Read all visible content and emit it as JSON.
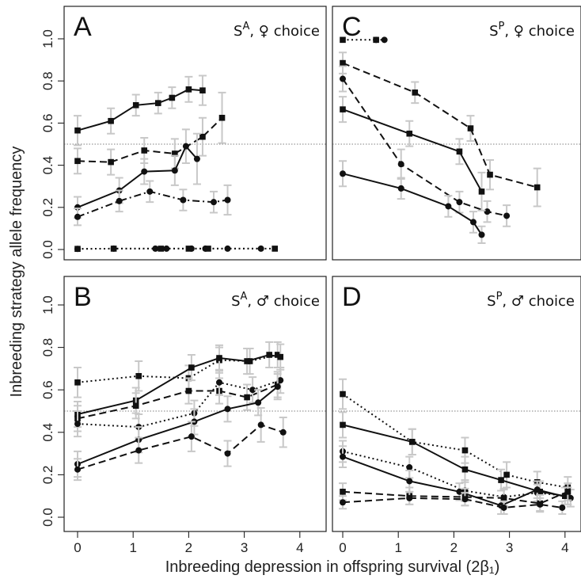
{
  "chart_data": {
    "type": "line",
    "xlabel": "Inbreeding depression in offspring survival (2β₁)",
    "ylabel": "Inbreeding strategy allele frequency",
    "xlim": [
      -0.1,
      4.25
    ],
    "ylim": [
      -0.05,
      1.12
    ],
    "xticks": [
      0,
      1,
      2,
      3,
      4
    ],
    "yticks": [
      0.0,
      0.2,
      0.4,
      0.6,
      0.8,
      1.0
    ],
    "reference_line_y": 0.5,
    "panels": [
      {
        "letter": "A",
        "strategy": "S",
        "sup": "A",
        "choice_sym": "♀",
        "choice": "choice",
        "series": [
          {
            "marker": "square",
            "dash": "solid",
            "x": [
              0,
              0.6,
              1.05,
              1.45,
              1.7,
              2.0,
              2.25
            ],
            "y": [
              0.565,
              0.61,
              0.685,
              0.695,
              0.72,
              0.76,
              0.755
            ],
            "err": [
              0.07,
              0.06,
              0.05,
              0.05,
              0.05,
              0.06,
              0.07
            ]
          },
          {
            "marker": "square",
            "dash": "dashed",
            "x": [
              0,
              0.6,
              1.2,
              1.75,
              2.25,
              2.6
            ],
            "y": [
              0.42,
              0.415,
              0.47,
              0.455,
              0.535,
              0.625
            ],
            "err": [
              0.06,
              0.06,
              0.06,
              0.07,
              0.09,
              0.12
            ]
          },
          {
            "marker": "circle",
            "dash": "solid",
            "x": [
              0,
              0.75,
              1.2,
              1.75,
              1.95,
              2.15
            ],
            "y": [
              0.2,
              0.28,
              0.37,
              0.375,
              0.49,
              0.43
            ],
            "err": [
              0.05,
              0.06,
              0.06,
              0.07,
              0.08,
              0.12
            ]
          },
          {
            "marker": "circle",
            "dash": "dashdot",
            "x": [
              0,
              0.75,
              1.3,
              1.9,
              2.45,
              2.7
            ],
            "y": [
              0.155,
              0.23,
              0.275,
              0.235,
              0.225,
              0.235
            ],
            "err": [
              0.04,
              0.05,
              0.05,
              0.05,
              0.05,
              0.07
            ]
          },
          {
            "marker": "circle",
            "dash": "dotted",
            "x": [
              0,
              0.65,
              1.4,
              1.6,
              2.05,
              2.3,
              2.7,
              3.3
            ],
            "y": [
              0.003,
              0.004,
              0.004,
              0.004,
              0.004,
              0.004,
              0.004,
              0.004
            ],
            "err": [
              0,
              0,
              0,
              0,
              0,
              0,
              0,
              0
            ]
          },
          {
            "marker": "square",
            "dash": "dotted",
            "x": [
              0,
              0.65,
              1.5,
              2.0,
              2.35,
              3.55
            ],
            "y": [
              0.003,
              0.004,
              0.004,
              0.004,
              0.004,
              0.004
            ],
            "err": [
              0,
              0,
              0,
              0,
              0,
              0
            ]
          }
        ]
      },
      {
        "letter": "C",
        "strategy": "S",
        "sup": "P",
        "choice_sym": "♀",
        "choice": "choice",
        "series": [
          {
            "marker": "square",
            "dash": "dotted",
            "x": [
              0,
              0.6
            ],
            "y": [
              0.995,
              0.995
            ],
            "err": [
              0,
              0
            ]
          },
          {
            "marker": "circle",
            "dash": "dotted",
            "x": [
              0.6,
              0.75
            ],
            "y": [
              0.995,
              0.995
            ],
            "err": [
              0,
              0
            ]
          },
          {
            "marker": "square",
            "dash": "dashed",
            "x": [
              0,
              1.3,
              2.3,
              2.65,
              3.5
            ],
            "y": [
              0.885,
              0.745,
              0.575,
              0.355,
              0.295
            ],
            "err": [
              0.05,
              0.05,
              0.06,
              0.07,
              0.09
            ]
          },
          {
            "marker": "circle",
            "dash": "dashed",
            "x": [
              0,
              1.05,
              2.1,
              2.6,
              2.95
            ],
            "y": [
              0.81,
              0.405,
              0.225,
              0.18,
              0.16
            ],
            "err": [
              0.06,
              0.07,
              0.05,
              0.05,
              0.05
            ]
          },
          {
            "marker": "square",
            "dash": "solid",
            "x": [
              0,
              1.2,
              2.1,
              2.5
            ],
            "y": [
              0.665,
              0.55,
              0.465,
              0.275
            ],
            "err": [
              0.06,
              0.06,
              0.06,
              0.09
            ]
          },
          {
            "marker": "circle",
            "dash": "solid",
            "x": [
              0,
              1.05,
              1.9,
              2.35,
              2.5
            ],
            "y": [
              0.36,
              0.29,
              0.205,
              0.13,
              0.07
            ],
            "err": [
              0.06,
              0.05,
              0.05,
              0.05,
              0.04
            ]
          }
        ]
      },
      {
        "letter": "B",
        "strategy": "S",
        "sup": "A",
        "choice_sym": "♂",
        "choice": "choice",
        "series": [
          {
            "marker": "square",
            "dash": "dotted",
            "x": [
              0,
              1.1,
              2.0,
              2.55,
              3.1,
              3.6
            ],
            "y": [
              0.635,
              0.665,
              0.655,
              0.74,
              0.735,
              0.765
            ],
            "err": [
              0.07,
              0.07,
              0.06,
              0.06,
              0.06,
              0.06
            ]
          },
          {
            "marker": "square",
            "dash": "solid",
            "x": [
              0,
              1.05,
              2.05,
              2.55,
              3.05,
              3.45,
              3.65
            ],
            "y": [
              0.485,
              0.55,
              0.705,
              0.75,
              0.735,
              0.765,
              0.755
            ],
            "err": [
              0.06,
              0.06,
              0.06,
              0.06,
              0.06,
              0.06,
              0.06
            ]
          },
          {
            "marker": "square",
            "dash": "dashed",
            "x": [
              0,
              1.05,
              2.0,
              2.55,
              3.05,
              3.6
            ],
            "y": [
              0.465,
              0.525,
              0.595,
              0.595,
              0.565,
              0.625
            ],
            "err": [
              0.06,
              0.06,
              0.06,
              0.06,
              0.06,
              0.06
            ]
          },
          {
            "marker": "circle",
            "dash": "dotted",
            "x": [
              0,
              1.1,
              2.1,
              2.55,
              3.15,
              3.65
            ],
            "y": [
              0.44,
              0.425,
              0.49,
              0.635,
              0.6,
              0.645
            ],
            "err": [
              0.06,
              0.06,
              0.06,
              0.06,
              0.06,
              0.06
            ]
          },
          {
            "marker": "circle",
            "dash": "solid",
            "x": [
              0,
              1.1,
              2.1,
              2.7,
              3.25,
              3.6
            ],
            "y": [
              0.25,
              0.365,
              0.45,
              0.51,
              0.54,
              0.615
            ],
            "err": [
              0.06,
              0.06,
              0.06,
              0.06,
              0.06,
              0.06
            ]
          },
          {
            "marker": "circle",
            "dash": "dashed",
            "x": [
              0,
              1.1,
              2.05,
              2.7,
              3.3,
              3.7
            ],
            "y": [
              0.225,
              0.315,
              0.38,
              0.3,
              0.435,
              0.4
            ],
            "err": [
              0.05,
              0.06,
              0.07,
              0.06,
              0.08,
              0.07
            ]
          }
        ]
      },
      {
        "letter": "D",
        "strategy": "S",
        "sup": "P",
        "choice_sym": "♂",
        "choice": "choice",
        "series": [
          {
            "marker": "square",
            "dash": "dotted",
            "x": [
              0,
              1.25,
              2.2,
              2.95,
              3.5,
              4.05
            ],
            "y": [
              0.58,
              0.355,
              0.315,
              0.2,
              0.165,
              0.14
            ],
            "err": [
              0.07,
              0.06,
              0.06,
              0.06,
              0.05,
              0.05
            ]
          },
          {
            "marker": "square",
            "dash": "solid",
            "x": [
              0,
              1.25,
              2.2,
              2.85,
              3.55,
              4.0
            ],
            "y": [
              0.435,
              0.355,
              0.225,
              0.175,
              0.12,
              0.1
            ],
            "err": [
              0.06,
              0.06,
              0.06,
              0.05,
              0.05,
              0.04
            ]
          },
          {
            "marker": "circle",
            "dash": "dotted",
            "x": [
              0,
              1.2,
              2.2,
              2.9,
              3.5,
              4.05
            ],
            "y": [
              0.31,
              0.235,
              0.125,
              0.095,
              0.115,
              0.1
            ],
            "err": [
              0.05,
              0.05,
              0.05,
              0.04,
              0.04,
              0.04
            ]
          },
          {
            "marker": "circle",
            "dash": "solid",
            "x": [
              0,
              1.2,
              2.1,
              2.85,
              3.5,
              4.1
            ],
            "y": [
              0.285,
              0.17,
              0.12,
              0.055,
              0.13,
              0.09
            ],
            "err": [
              0.05,
              0.05,
              0.04,
              0.04,
              0.04,
              0.04
            ]
          },
          {
            "marker": "square",
            "dash": "dashed",
            "x": [
              0,
              1.2,
              2.2,
              2.9,
              3.55,
              4.05
            ],
            "y": [
              0.12,
              0.1,
              0.095,
              0.09,
              0.065,
              0.12
            ],
            "err": [
              0.04,
              0.04,
              0.04,
              0.04,
              0.04,
              0.04
            ]
          },
          {
            "marker": "circle",
            "dash": "dashed",
            "x": [
              0,
              1.2,
              2.2,
              2.9,
              3.55,
              3.95
            ],
            "y": [
              0.07,
              0.09,
              0.085,
              0.045,
              0.06,
              0.045
            ],
            "err": [
              0.03,
              0.03,
              0.03,
              0.03,
              0.03,
              0.03
            ]
          }
        ]
      }
    ]
  }
}
